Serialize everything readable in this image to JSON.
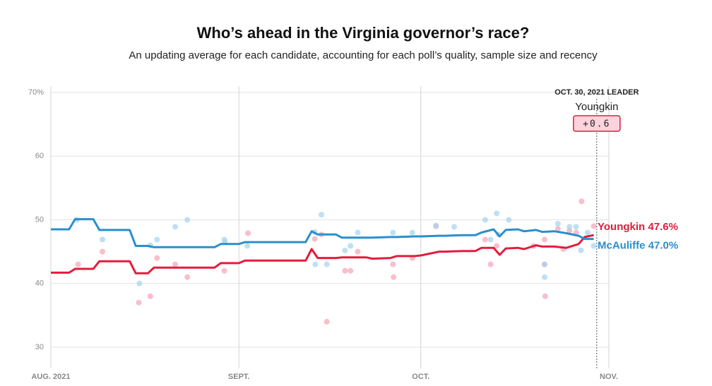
{
  "chart_data": {
    "type": "line",
    "title": "Who’s ahead in the Virginia governor’s race?",
    "subtitle": "An updating average for each candidate, accounting for each poll’s quality, sample size and recency",
    "xlim": [
      0,
      92
    ],
    "xticks": [
      {
        "value": 0,
        "label": "AUG. 2021"
      },
      {
        "value": 31,
        "label": "SEPT."
      },
      {
        "value": 61,
        "label": "OCT."
      },
      {
        "value": 92,
        "label": "NOV."
      }
    ],
    "ylim": [
      30,
      70
    ],
    "yticks": [
      30,
      40,
      50,
      60,
      {
        "value": 70,
        "label": "70%"
      }
    ],
    "grid": true,
    "x": [
      0,
      3,
      4,
      7,
      8,
      13,
      14,
      16,
      17,
      27,
      28,
      31,
      32,
      42,
      43,
      44,
      47,
      48,
      52,
      53,
      56,
      57,
      60,
      61,
      64,
      65,
      68,
      70,
      71,
      73,
      74,
      75,
      77,
      78,
      80,
      81,
      83,
      85,
      87,
      88,
      89.5
    ],
    "series": [
      {
        "name": "Youngkin",
        "color": "#e31c3d",
        "end_label": "47.6%",
        "values": [
          41.7,
          41.7,
          42.3,
          42.3,
          43.5,
          43.5,
          41.6,
          41.6,
          42.5,
          42.5,
          43.2,
          43.2,
          43.6,
          43.6,
          45.4,
          44.0,
          44.0,
          44.1,
          44.1,
          43.9,
          44.0,
          44.3,
          44.3,
          44.4,
          45.0,
          45.0,
          45.1,
          45.1,
          45.6,
          45.6,
          44.5,
          45.5,
          45.6,
          45.4,
          46.0,
          45.8,
          45.8,
          45.6,
          46.2,
          47.3,
          47.6
        ],
        "poll_color": "#f6a2b5",
        "poll_x": [
          4.5,
          8.5,
          14.5,
          16.4,
          17.5,
          20.5,
          22.5,
          28.6,
          32.5,
          43.5,
          44.6,
          45.5,
          48.5,
          49.4,
          50.6,
          56.4,
          56.5,
          59.6,
          63.5,
          71.6,
          72.5,
          73.5,
          79.6,
          81.4,
          81.4,
          81.5,
          83.6,
          84.5,
          85.5,
          86.6,
          87.5,
          89.5
        ],
        "poll_values": [
          43,
          45,
          37,
          38,
          44,
          43,
          41,
          42,
          47.9,
          47,
          47.7,
          34,
          42,
          42,
          45,
          43,
          41,
          44,
          49,
          46.9,
          43,
          45.9,
          45.9,
          46.9,
          43,
          38,
          48.6,
          45.4,
          48.3,
          48,
          52.9,
          49
        ]
      },
      {
        "name": "McAuliffe",
        "color": "#2a8fcb",
        "end_label": "47.0%",
        "values": [
          48.5,
          48.5,
          50.1,
          50.1,
          48.4,
          48.4,
          45.9,
          45.9,
          45.7,
          45.7,
          46.2,
          46.2,
          46.5,
          46.5,
          48.2,
          47.7,
          47.7,
          47.2,
          47.2,
          47.2,
          47.3,
          47.3,
          47.4,
          47.4,
          47.5,
          47.5,
          47.6,
          47.6,
          48.0,
          48.5,
          47.4,
          48.4,
          48.5,
          48.2,
          48.4,
          48.1,
          48.2,
          47.9,
          47.5,
          47.0,
          47.0
        ],
        "poll_color": "#a3d3ee",
        "poll_x": [
          4.3,
          8.5,
          14.6,
          16.4,
          17.5,
          20.5,
          22.5,
          28.6,
          28.7,
          32.4,
          43.5,
          43.6,
          44.6,
          45.5,
          48.5,
          49.4,
          50.6,
          56.4,
          59.6,
          63.5,
          66.5,
          71.6,
          72.5,
          73.5,
          73.8,
          75.5,
          81.4,
          81.4,
          83.6,
          85.5,
          86.6,
          87.4,
          88.5,
          89.5
        ],
        "poll_values": [
          50,
          46.9,
          40,
          46,
          46.9,
          48.9,
          50,
          46.9,
          46.5,
          45.9,
          48.1,
          43,
          50.8,
          43,
          45.2,
          45.9,
          48,
          48,
          48,
          49.1,
          48.9,
          50,
          46.9,
          51,
          47.7,
          50,
          41,
          43,
          49.4,
          48.9,
          48.9,
          45.2,
          48,
          45.9
        ]
      }
    ],
    "annotation": {
      "x": 90,
      "date_label": "OCT. 30, 2021 LEADER",
      "leader": "Youngkin",
      "margin": {
        "value": 0.6,
        "label": "+0.6"
      }
    }
  }
}
